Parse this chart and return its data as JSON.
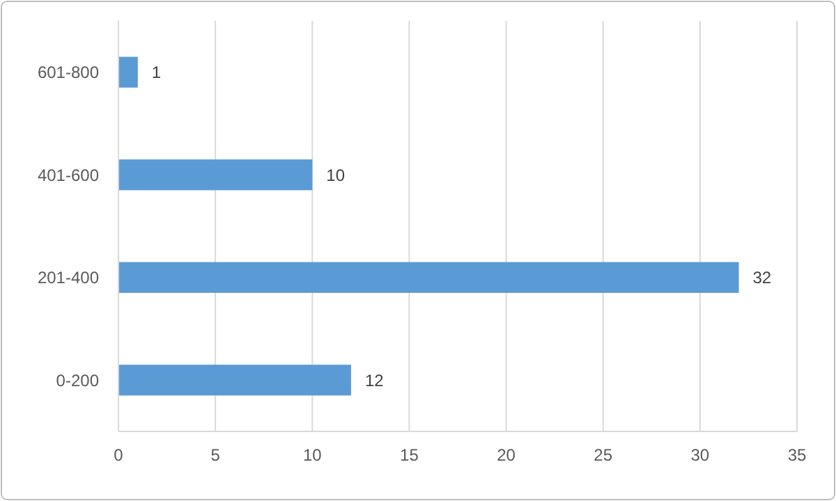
{
  "chart_data": {
    "type": "bar",
    "orientation": "horizontal",
    "categories": [
      "601-800",
      "401-600",
      "201-400",
      "0-200"
    ],
    "values": [
      1,
      10,
      32,
      12
    ],
    "color": "#5b9bd5",
    "xlim": [
      0,
      35
    ],
    "xticks": [
      0,
      5,
      10,
      15,
      20,
      25,
      30,
      35
    ],
    "grid": "x",
    "data_labels": true
  }
}
